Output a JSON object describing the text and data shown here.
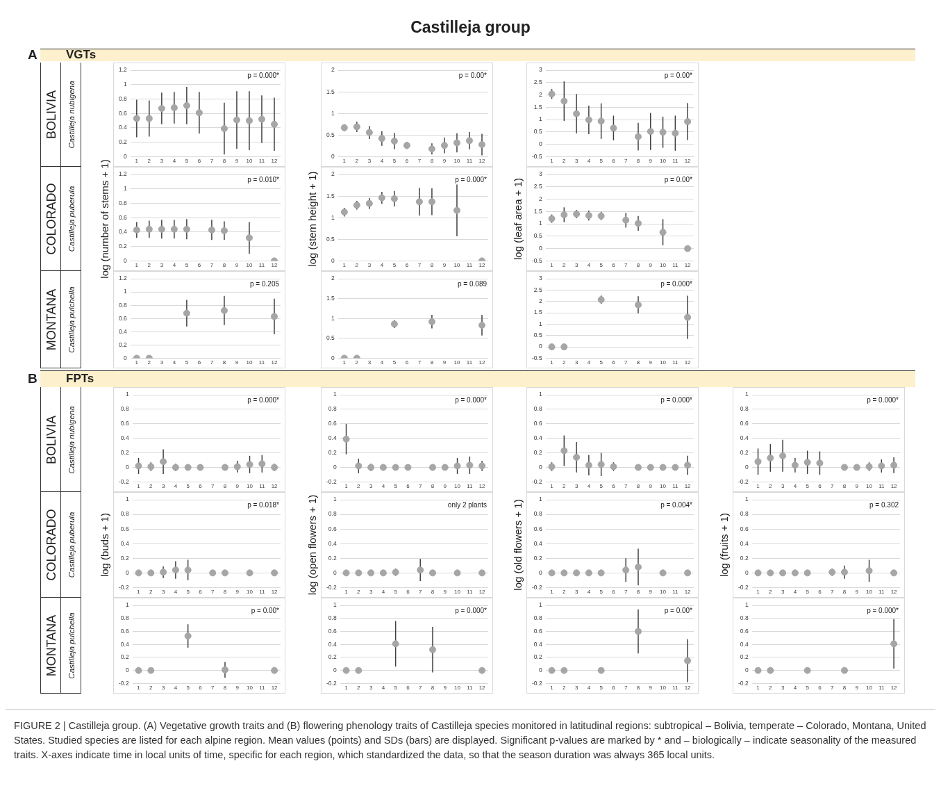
{
  "chart_data": [
    {
      "type": "scatter",
      "x": [
        1,
        2,
        3,
        4,
        5,
        6,
        7,
        8,
        9,
        10,
        11,
        12
      ],
      "xlim": [
        0.5,
        12.5
      ],
      "xticks": [
        1,
        2,
        3,
        4,
        5,
        6,
        7,
        8,
        9,
        10,
        11,
        12
      ],
      "values": [
        0.53,
        0.53,
        0.67,
        0.68,
        0.71,
        0.61,
        null,
        0.39,
        0.51,
        0.5,
        0.52,
        0.45
      ],
      "errors": [
        0.26,
        0.25,
        0.22,
        0.22,
        0.26,
        0.29,
        null,
        0.36,
        0.4,
        0.41,
        0.33,
        0.37
      ],
      "ylim": [
        0,
        1.2
      ],
      "yticks": [
        0,
        0.2,
        0.4,
        0.6,
        0.8,
        1,
        1.2
      ],
      "annotations": [
        "p = 0.000*"
      ],
      "grid": "y",
      "marker": "circle",
      "color": "#a6a6a6"
    },
    {
      "type": "scatter",
      "x": [
        1,
        2,
        3,
        4,
        5,
        6,
        7,
        8,
        9,
        10,
        11,
        12
      ],
      "xlim": [
        0.5,
        12.5
      ],
      "xticks": [
        1,
        2,
        3,
        4,
        5,
        6,
        7,
        8,
        9,
        10,
        11,
        12
      ],
      "values": [
        0.67,
        0.69,
        0.56,
        0.42,
        0.36,
        0.26,
        null,
        0.18,
        0.26,
        0.32,
        0.37,
        0.28
      ],
      "errors": [
        0.08,
        0.12,
        0.15,
        0.17,
        0.19,
        0.08,
        null,
        0.13,
        0.18,
        0.22,
        0.2,
        0.25
      ],
      "ylim": [
        0,
        2
      ],
      "yticks": [
        0,
        0.5,
        1,
        1.5,
        2
      ],
      "annotations": [
        "p = 0.00*"
      ],
      "grid": "y",
      "marker": "circle",
      "color": "#a6a6a6"
    },
    {
      "type": "scatter",
      "x": [
        1,
        2,
        3,
        4,
        5,
        6,
        7,
        8,
        9,
        10,
        11,
        12
      ],
      "xlim": [
        0.5,
        12.5
      ],
      "xticks": [
        1,
        2,
        3,
        4,
        5,
        6,
        7,
        8,
        9,
        10,
        11,
        12
      ],
      "values": [
        2.04,
        1.75,
        1.24,
        0.99,
        0.94,
        0.66,
        null,
        0.31,
        0.52,
        0.49,
        0.45,
        0.92
      ],
      "errors": [
        0.2,
        0.8,
        0.8,
        0.58,
        0.72,
        0.5,
        null,
        0.56,
        0.75,
        0.63,
        0.71,
        0.75
      ],
      "ylim": [
        -0.5,
        3
      ],
      "yticks": [
        -0.5,
        0,
        0.5,
        1,
        1.5,
        2,
        2.5,
        3
      ],
      "annotations": [
        "p = 0.00*"
      ],
      "grid": "y",
      "marker": "circle",
      "color": "#a6a6a6"
    },
    {
      "type": "scatter",
      "x": [
        1,
        2,
        3,
        4,
        5,
        6,
        7,
        8,
        9,
        10,
        11,
        12
      ],
      "xlim": [
        0.5,
        12.5
      ],
      "xticks": [
        1,
        2,
        3,
        4,
        5,
        6,
        7,
        8,
        9,
        10,
        11,
        12
      ],
      "values": [
        0.43,
        0.44,
        0.44,
        0.44,
        0.44,
        null,
        0.43,
        0.42,
        null,
        0.32,
        null,
        0
      ],
      "errors": [
        0.11,
        0.12,
        0.13,
        0.13,
        0.14,
        null,
        0.14,
        0.13,
        null,
        0.22,
        null,
        null
      ],
      "ylim": [
        0,
        1.2
      ],
      "yticks": [
        0,
        0.2,
        0.4,
        0.6,
        0.8,
        1,
        1.2
      ],
      "annotations": [
        "p = 0.010*"
      ],
      "ylabel": "log (number of stems + 1)",
      "grid": "y",
      "marker": "circle",
      "color": "#a6a6a6"
    },
    {
      "type": "scatter",
      "x": [
        1,
        2,
        3,
        4,
        5,
        6,
        7,
        8,
        9,
        10,
        11,
        12
      ],
      "xlim": [
        0.5,
        12.5
      ],
      "xticks": [
        1,
        2,
        3,
        4,
        5,
        6,
        7,
        8,
        9,
        10,
        11,
        12
      ],
      "values": [
        1.13,
        1.29,
        1.33,
        1.46,
        1.44,
        null,
        1.37,
        1.37,
        null,
        1.17,
        null,
        0
      ],
      "errors": [
        0.1,
        0.1,
        0.13,
        0.14,
        0.18,
        null,
        0.32,
        0.31,
        null,
        0.6,
        null,
        null
      ],
      "ylim": [
        0,
        2
      ],
      "yticks": [
        0,
        0.5,
        1,
        1.5,
        2
      ],
      "annotations": [
        "p = 0.000*"
      ],
      "ylabel": "log (stem height + 1)",
      "grid": "y",
      "marker": "circle",
      "color": "#a6a6a6"
    },
    {
      "type": "scatter",
      "x": [
        1,
        2,
        3,
        4,
        5,
        6,
        7,
        8,
        9,
        10,
        11,
        12
      ],
      "xlim": [
        0.5,
        12.5
      ],
      "xticks": [
        1,
        2,
        3,
        4,
        5,
        6,
        7,
        8,
        9,
        10,
        11,
        12
      ],
      "values": [
        1.21,
        1.37,
        1.4,
        1.34,
        1.32,
        null,
        1.15,
        1.02,
        null,
        0.66,
        null,
        0
      ],
      "errors": [
        0.17,
        0.3,
        0.17,
        0.2,
        0.17,
        null,
        0.3,
        0.3,
        null,
        0.53,
        null,
        null
      ],
      "ylim": [
        -0.5,
        3
      ],
      "yticks": [
        -0.5,
        0,
        0.5,
        1,
        1.5,
        2,
        2.5,
        3
      ],
      "annotations": [
        "p = 0.00*"
      ],
      "ylabel": "log (leaf area + 1)",
      "grid": "y",
      "marker": "circle",
      "color": "#a6a6a6"
    },
    {
      "type": "scatter",
      "x": [
        1,
        2,
        3,
        4,
        5,
        6,
        7,
        8,
        9,
        10,
        11,
        12
      ],
      "xlim": [
        0.5,
        12.5
      ],
      "xticks": [
        1,
        2,
        3,
        4,
        5,
        6,
        7,
        8,
        9,
        10,
        11,
        12
      ],
      "values": [
        0,
        0,
        null,
        null,
        0.68,
        null,
        null,
        0.72,
        null,
        null,
        null,
        0.63
      ],
      "errors": [
        null,
        null,
        null,
        null,
        0.2,
        null,
        null,
        0.22,
        null,
        null,
        null,
        0.27
      ],
      "ylim": [
        0,
        1.2
      ],
      "yticks": [
        0,
        0.2,
        0.4,
        0.6,
        0.8,
        1,
        1.2
      ],
      "annotations": [
        "p = 0.205"
      ],
      "grid": "y",
      "marker": "circle",
      "color": "#a6a6a6"
    },
    {
      "type": "scatter",
      "x": [
        1,
        2,
        3,
        4,
        5,
        6,
        7,
        8,
        9,
        10,
        11,
        12
      ],
      "xlim": [
        0.5,
        12.5
      ],
      "xticks": [
        1,
        2,
        3,
        4,
        5,
        6,
        7,
        8,
        9,
        10,
        11,
        12
      ],
      "values": [
        0,
        0,
        null,
        null,
        0.86,
        null,
        null,
        0.92,
        null,
        null,
        null,
        0.83
      ],
      "errors": [
        null,
        null,
        null,
        null,
        0.1,
        null,
        null,
        0.17,
        null,
        null,
        null,
        0.26
      ],
      "ylim": [
        0,
        2
      ],
      "yticks": [
        0,
        0.5,
        1,
        1.5,
        2
      ],
      "annotations": [
        "p = 0.089"
      ],
      "grid": "y",
      "marker": "circle",
      "color": "#a6a6a6"
    },
    {
      "type": "scatter",
      "x": [
        1,
        2,
        3,
        4,
        5,
        6,
        7,
        8,
        9,
        10,
        11,
        12
      ],
      "xlim": [
        0.5,
        12.5
      ],
      "xticks": [
        1,
        2,
        3,
        4,
        5,
        6,
        7,
        8,
        9,
        10,
        11,
        12
      ],
      "values": [
        0,
        0,
        null,
        null,
        2.08,
        null,
        null,
        1.85,
        null,
        null,
        null,
        1.3
      ],
      "errors": [
        null,
        null,
        null,
        null,
        0.18,
        null,
        null,
        0.38,
        null,
        null,
        null,
        0.95
      ],
      "ylim": [
        -0.5,
        3
      ],
      "yticks": [
        -0.5,
        0,
        0.5,
        1,
        1.5,
        2,
        2.5,
        3
      ],
      "annotations": [
        "p = 0.000*"
      ],
      "grid": "y",
      "marker": "circle",
      "color": "#a6a6a6"
    },
    {
      "type": "scatter",
      "x": [
        1,
        2,
        3,
        4,
        5,
        6,
        7,
        8,
        9,
        10,
        11,
        12
      ],
      "xlim": [
        0.5,
        12.5
      ],
      "xticks": [
        1,
        2,
        3,
        4,
        5,
        6,
        7,
        8,
        9,
        10,
        11,
        12
      ],
      "values": [
        0.02,
        0.01,
        0.08,
        0,
        0,
        0,
        null,
        0,
        0.01,
        0.04,
        0.05,
        0
      ],
      "errors": [
        0.11,
        0.06,
        0.17,
        0.05,
        null,
        null,
        null,
        null,
        0.08,
        0.12,
        0.12,
        0.05
      ],
      "ylim": [
        -0.2,
        1
      ],
      "yticks": [
        -0.2,
        0,
        0.2,
        0.4,
        0.6,
        0.8,
        1
      ],
      "annotations": [
        "p = 0.000*"
      ],
      "grid": "y",
      "marker": "circle",
      "color": "#a6a6a6"
    },
    {
      "type": "scatter",
      "x": [
        1,
        2,
        3,
        4,
        5,
        6,
        7,
        8,
        9,
        10,
        11,
        12
      ],
      "xlim": [
        0.5,
        12.5
      ],
      "xticks": [
        1,
        2,
        3,
        4,
        5,
        6,
        7,
        8,
        9,
        10,
        11,
        12
      ],
      "values": [
        0.39,
        0.02,
        0,
        0,
        0,
        0,
        null,
        0,
        0,
        0.02,
        0.03,
        0.02
      ],
      "errors": [
        0.21,
        0.1,
        0.05,
        null,
        null,
        null,
        null,
        null,
        null,
        0.11,
        0.12,
        0.07
      ],
      "ylim": [
        -0.2,
        1
      ],
      "yticks": [
        -0.2,
        0,
        0.2,
        0.4,
        0.6,
        0.8,
        1
      ],
      "annotations": [
        "p = 0.000*"
      ],
      "grid": "y",
      "marker": "circle",
      "color": "#a6a6a6"
    },
    {
      "type": "scatter",
      "x": [
        1,
        2,
        3,
        4,
        5,
        6,
        7,
        8,
        9,
        10,
        11,
        12
      ],
      "xlim": [
        0.5,
        12.5
      ],
      "xticks": [
        1,
        2,
        3,
        4,
        5,
        6,
        7,
        8,
        9,
        10,
        11,
        12
      ],
      "values": [
        0.01,
        0.23,
        0.14,
        0.03,
        0.04,
        0.01,
        null,
        0,
        0,
        0,
        0,
        0.03
      ],
      "errors": [
        0.06,
        0.21,
        0.21,
        0.14,
        0.16,
        0.06,
        null,
        null,
        null,
        null,
        0.04,
        0.13
      ],
      "ylim": [
        -0.2,
        1
      ],
      "yticks": [
        -0.2,
        0,
        0.2,
        0.4,
        0.6,
        0.8,
        1
      ],
      "annotations": [
        "p = 0.000*"
      ],
      "grid": "y",
      "marker": "circle",
      "color": "#a6a6a6"
    },
    {
      "type": "scatter",
      "x": [
        1,
        2,
        3,
        4,
        5,
        6,
        7,
        8,
        9,
        10,
        11,
        12
      ],
      "xlim": [
        0.5,
        12.5
      ],
      "xticks": [
        1,
        2,
        3,
        4,
        5,
        6,
        7,
        8,
        9,
        10,
        11,
        12
      ],
      "values": [
        0.08,
        0.13,
        0.16,
        0.03,
        0.07,
        0.06,
        null,
        0,
        0,
        0.01,
        0.02,
        0.03
      ],
      "errors": [
        0.18,
        0.19,
        0.22,
        0.1,
        0.16,
        0.16,
        null,
        null,
        null,
        0.06,
        0.09,
        0.11
      ],
      "ylim": [
        -0.2,
        1
      ],
      "yticks": [
        -0.2,
        0,
        0.2,
        0.4,
        0.6,
        0.8,
        1
      ],
      "annotations": [
        "p = 0.000*"
      ],
      "grid": "y",
      "marker": "circle",
      "color": "#a6a6a6"
    },
    {
      "type": "scatter",
      "x": [
        1,
        2,
        3,
        4,
        5,
        6,
        7,
        8,
        9,
        10,
        11,
        12
      ],
      "xlim": [
        0.5,
        12.5
      ],
      "xticks": [
        1,
        2,
        3,
        4,
        5,
        6,
        7,
        8,
        9,
        10,
        11,
        12
      ],
      "values": [
        0,
        0,
        0.01,
        0.04,
        0.04,
        null,
        0,
        0,
        null,
        0,
        null,
        0
      ],
      "errors": [
        null,
        null,
        0.08,
        0.12,
        0.14,
        null,
        null,
        null,
        null,
        null,
        null,
        null
      ],
      "ylim": [
        -0.2,
        1
      ],
      "yticks": [
        -0.2,
        0,
        0.2,
        0.4,
        0.6,
        0.8,
        1
      ],
      "annotations": [
        "p = 0.018*"
      ],
      "ylabel": "log (buds + 1)",
      "grid": "y",
      "marker": "circle",
      "color": "#a6a6a6"
    },
    {
      "type": "scatter",
      "x": [
        1,
        2,
        3,
        4,
        5,
        6,
        7,
        8,
        9,
        10,
        11,
        12
      ],
      "xlim": [
        0.5,
        12.5
      ],
      "xticks": [
        1,
        2,
        3,
        4,
        5,
        6,
        7,
        8,
        9,
        10,
        11,
        12
      ],
      "values": [
        0,
        0,
        0,
        0,
        0.01,
        null,
        0.04,
        0,
        null,
        0,
        null,
        0
      ],
      "errors": [
        null,
        null,
        null,
        null,
        0.05,
        null,
        0.15,
        null,
        null,
        null,
        null,
        null
      ],
      "ylim": [
        -0.2,
        1
      ],
      "yticks": [
        -0.2,
        0,
        0.2,
        0.4,
        0.6,
        0.8,
        1
      ],
      "annotations": [
        "only 2 plants"
      ],
      "ylabel": "log (open flowers + 1)",
      "grid": "y",
      "marker": "circle",
      "color": "#a6a6a6"
    },
    {
      "type": "scatter",
      "x": [
        1,
        2,
        3,
        4,
        5,
        6,
        7,
        8,
        9,
        10,
        11,
        12
      ],
      "xlim": [
        0.5,
        12.5
      ],
      "xticks": [
        1,
        2,
        3,
        4,
        5,
        6,
        7,
        8,
        9,
        10,
        11,
        12
      ],
      "values": [
        0,
        0,
        0,
        0,
        0,
        null,
        0.04,
        0.08,
        null,
        0,
        null,
        0
      ],
      "errors": [
        null,
        null,
        null,
        null,
        null,
        null,
        0.16,
        0.25,
        null,
        null,
        null,
        null
      ],
      "ylim": [
        -0.2,
        1
      ],
      "yticks": [
        -0.2,
        0,
        0.2,
        0.4,
        0.6,
        0.8,
        1
      ],
      "annotations": [
        "p = 0.004*"
      ],
      "ylabel": "log (old flowers + 1)",
      "grid": "y",
      "marker": "circle",
      "color": "#a6a6a6"
    },
    {
      "type": "scatter",
      "x": [
        1,
        2,
        3,
        4,
        5,
        6,
        7,
        8,
        9,
        10,
        11,
        12
      ],
      "xlim": [
        0.5,
        12.5
      ],
      "xticks": [
        1,
        2,
        3,
        4,
        5,
        6,
        7,
        8,
        9,
        10,
        11,
        12
      ],
      "values": [
        0,
        0,
        0,
        0,
        0,
        null,
        0.01,
        0.01,
        null,
        0.03,
        null,
        0
      ],
      "errors": [
        null,
        null,
        null,
        null,
        null,
        null,
        0.05,
        0.09,
        null,
        0.15,
        null,
        null
      ],
      "ylim": [
        -0.2,
        1
      ],
      "yticks": [
        -0.2,
        0,
        0.2,
        0.4,
        0.6,
        0.8,
        1
      ],
      "annotations": [
        "p = 0.302"
      ],
      "ylabel": "log (fruits + 1)",
      "grid": "y",
      "marker": "circle",
      "color": "#a6a6a6"
    },
    {
      "type": "scatter",
      "x": [
        1,
        2,
        3,
        4,
        5,
        6,
        7,
        8,
        9,
        10,
        11,
        12
      ],
      "xlim": [
        0.5,
        12.5
      ],
      "xticks": [
        1,
        2,
        3,
        4,
        5,
        6,
        7,
        8,
        9,
        10,
        11,
        12
      ],
      "values": [
        0,
        0,
        null,
        null,
        0.53,
        null,
        null,
        0.01,
        null,
        null,
        null,
        0
      ],
      "errors": [
        null,
        null,
        null,
        null,
        0.18,
        null,
        null,
        0.12,
        null,
        null,
        null,
        null
      ],
      "ylim": [
        -0.2,
        1
      ],
      "yticks": [
        -0.2,
        0,
        0.2,
        0.4,
        0.6,
        0.8,
        1
      ],
      "annotations": [
        "p = 0.00*"
      ],
      "grid": "y",
      "marker": "circle",
      "color": "#a6a6a6"
    },
    {
      "type": "scatter",
      "x": [
        1,
        2,
        3,
        4,
        5,
        6,
        7,
        8,
        9,
        10,
        11,
        12
      ],
      "xlim": [
        0.5,
        12.5
      ],
      "xticks": [
        1,
        2,
        3,
        4,
        5,
        6,
        7,
        8,
        9,
        10,
        11,
        12
      ],
      "values": [
        0,
        0,
        null,
        null,
        0.41,
        null,
        null,
        0.32,
        null,
        null,
        null,
        0
      ],
      "errors": [
        null,
        null,
        null,
        null,
        0.35,
        null,
        null,
        0.35,
        null,
        null,
        null,
        null
      ],
      "ylim": [
        -0.2,
        1
      ],
      "yticks": [
        -0.2,
        0,
        0.2,
        0.4,
        0.6,
        0.8,
        1
      ],
      "annotations": [
        "p = 0.000*"
      ],
      "grid": "y",
      "marker": "circle",
      "color": "#a6a6a6"
    },
    {
      "type": "scatter",
      "x": [
        1,
        2,
        3,
        4,
        5,
        6,
        7,
        8,
        9,
        10,
        11,
        12
      ],
      "xlim": [
        0.5,
        12.5
      ],
      "xticks": [
        1,
        2,
        3,
        4,
        5,
        6,
        7,
        8,
        9,
        10,
        11,
        12
      ],
      "values": [
        0,
        0,
        null,
        null,
        0,
        null,
        null,
        0.6,
        null,
        null,
        null,
        0.15
      ],
      "errors": [
        null,
        null,
        null,
        null,
        null,
        null,
        null,
        0.34,
        null,
        null,
        null,
        0.33
      ],
      "ylim": [
        -0.2,
        1
      ],
      "yticks": [
        -0.2,
        0,
        0.2,
        0.4,
        0.6,
        0.8,
        1
      ],
      "annotations": [
        "p = 0.00*"
      ],
      "grid": "y",
      "marker": "circle",
      "color": "#a6a6a6"
    },
    {
      "type": "scatter",
      "x": [
        1,
        2,
        3,
        4,
        5,
        6,
        7,
        8,
        9,
        10,
        11,
        12
      ],
      "xlim": [
        0.5,
        12.5
      ],
      "xticks": [
        1,
        2,
        3,
        4,
        5,
        6,
        7,
        8,
        9,
        10,
        11,
        12
      ],
      "values": [
        0,
        0,
        null,
        null,
        0,
        null,
        null,
        0,
        null,
        null,
        null,
        0.41
      ],
      "errors": [
        null,
        null,
        null,
        null,
        null,
        null,
        null,
        null,
        null,
        null,
        null,
        0.38
      ],
      "ylim": [
        -0.2,
        1
      ],
      "yticks": [
        -0.2,
        0,
        0.2,
        0.4,
        0.6,
        0.8,
        1
      ],
      "annotations": [
        "p = 0.000*"
      ],
      "grid": "y",
      "marker": "circle",
      "color": "#a6a6a6"
    },
    {
      "type": "other",
      "title": "Castilleja group",
      "annotations": [
        "A",
        "VGTs",
        "B",
        "FPTs",
        "BOLIVIA",
        "Castilleja nubigena",
        "COLORADO",
        "Castilleja puberula",
        "MONTANA",
        "Castilleja pulchella",
        "FIGURE 2 | Castilleja group. (A) Vegetative growth traits and (B) flowering phenology traits of Castilleja species monitored in latitudinal regions: subtropical – Bolivia, temperate – Colorado, Montana, United States. Studied species are listed for each alpine region. Mean values (points) and SDs (bars) are displayed. Significant p-values are marked by * and – biologically – indicate seasonality of the measured traits. X-axes indicate time in local units of time, specific for each region, which standardized the data, so that the season duration was always 365 local units."
      ]
    }
  ]
}
